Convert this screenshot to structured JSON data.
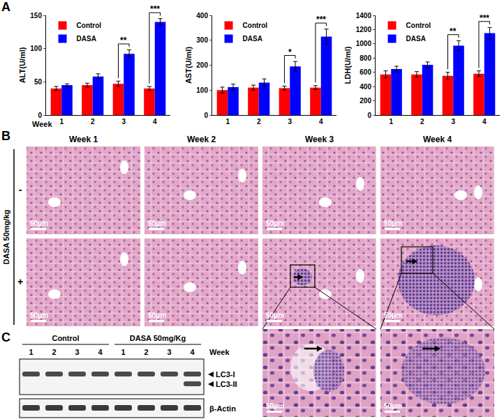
{
  "chart_data": [
    {
      "type": "bar",
      "y_label": "ALT(U/ml)",
      "x_label": "Week",
      "categories": [
        "1",
        "2",
        "3",
        "4"
      ],
      "series": [
        {
          "name": "Control",
          "color": "#ff0000",
          "values": [
            40,
            45,
            47,
            40
          ],
          "errors": [
            3,
            3,
            4,
            3
          ]
        },
        {
          "name": "DASA",
          "color": "#0000ff",
          "values": [
            45,
            58,
            92,
            140
          ],
          "errors": [
            2,
            4,
            6,
            5
          ]
        }
      ],
      "ylim": [
        0,
        150
      ],
      "yticks": [
        0,
        50,
        100,
        150
      ],
      "grid": false,
      "legend": "upper left",
      "significance": [
        {
          "category": "3",
          "text": "**"
        },
        {
          "category": "4",
          "text": "***"
        }
      ]
    },
    {
      "type": "bar",
      "y_label": "AST(U/ml)",
      "categories": [
        "1",
        "2",
        "3",
        "4"
      ],
      "series": [
        {
          "name": "Control",
          "color": "#ff0000",
          "values": [
            100,
            110,
            108,
            110
          ],
          "errors": [
            12,
            10,
            8,
            8
          ]
        },
        {
          "name": "DASA",
          "color": "#0000ff",
          "values": [
            112,
            130,
            195,
            315
          ],
          "errors": [
            12,
            15,
            20,
            30
          ]
        }
      ],
      "ylim": [
        0,
        400
      ],
      "yticks": [
        0,
        100,
        200,
        300,
        400
      ],
      "grid": false,
      "legend": "upper left",
      "significance": [
        {
          "category": "3",
          "text": "*"
        },
        {
          "category": "4",
          "text": "***"
        }
      ]
    },
    {
      "type": "bar",
      "y_label": "LDH(U/ml)",
      "categories": [
        "1",
        "2",
        "3",
        "4"
      ],
      "series": [
        {
          "name": "Control",
          "color": "#ff0000",
          "values": [
            570,
            570,
            550,
            580
          ],
          "errors": [
            50,
            40,
            50,
            40
          ]
        },
        {
          "name": "DASA",
          "color": "#0000ff",
          "values": [
            645,
            705,
            975,
            1150
          ],
          "errors": [
            40,
            40,
            70,
            80
          ]
        }
      ],
      "ylim": [
        0,
        1400
      ],
      "yticks": [
        0,
        200,
        400,
        600,
        800,
        1000,
        1200,
        1400
      ],
      "grid": false,
      "legend": "upper left",
      "significance": [
        {
          "category": "3",
          "text": "**"
        },
        {
          "category": "4",
          "text": "***"
        }
      ]
    }
  ],
  "panel_labels": [
    "A",
    "B",
    "C"
  ],
  "histology": {
    "columns": [
      "Week 1",
      "Week 2",
      "Week 3",
      "Week 4"
    ],
    "treatment_label": "DASA 50mg/kg",
    "rows": [
      {
        "label": "-",
        "lesion": [
          false,
          false,
          false,
          false
        ]
      },
      {
        "label": "+",
        "lesion": [
          false,
          false,
          true,
          true
        ]
      }
    ],
    "inset": [
      false,
      false,
      true,
      true
    ],
    "scale_bar": "50μm"
  },
  "western_blot": {
    "groups": [
      {
        "label": "Control",
        "lanes": [
          "1",
          "2",
          "3",
          "4"
        ]
      },
      {
        "label": "DASA 50mg/Kg",
        "lanes": [
          "1",
          "2",
          "3",
          "4"
        ]
      }
    ],
    "lane_axis_label": "Week",
    "bands": [
      {
        "label": "LC3-I",
        "present": [
          true,
          true,
          true,
          true,
          true,
          true,
          true,
          true
        ]
      },
      {
        "label": "LC3-II",
        "present": [
          false,
          false,
          false,
          false,
          false,
          false,
          false,
          true
        ]
      }
    ],
    "loading_control": "β-Actin"
  }
}
